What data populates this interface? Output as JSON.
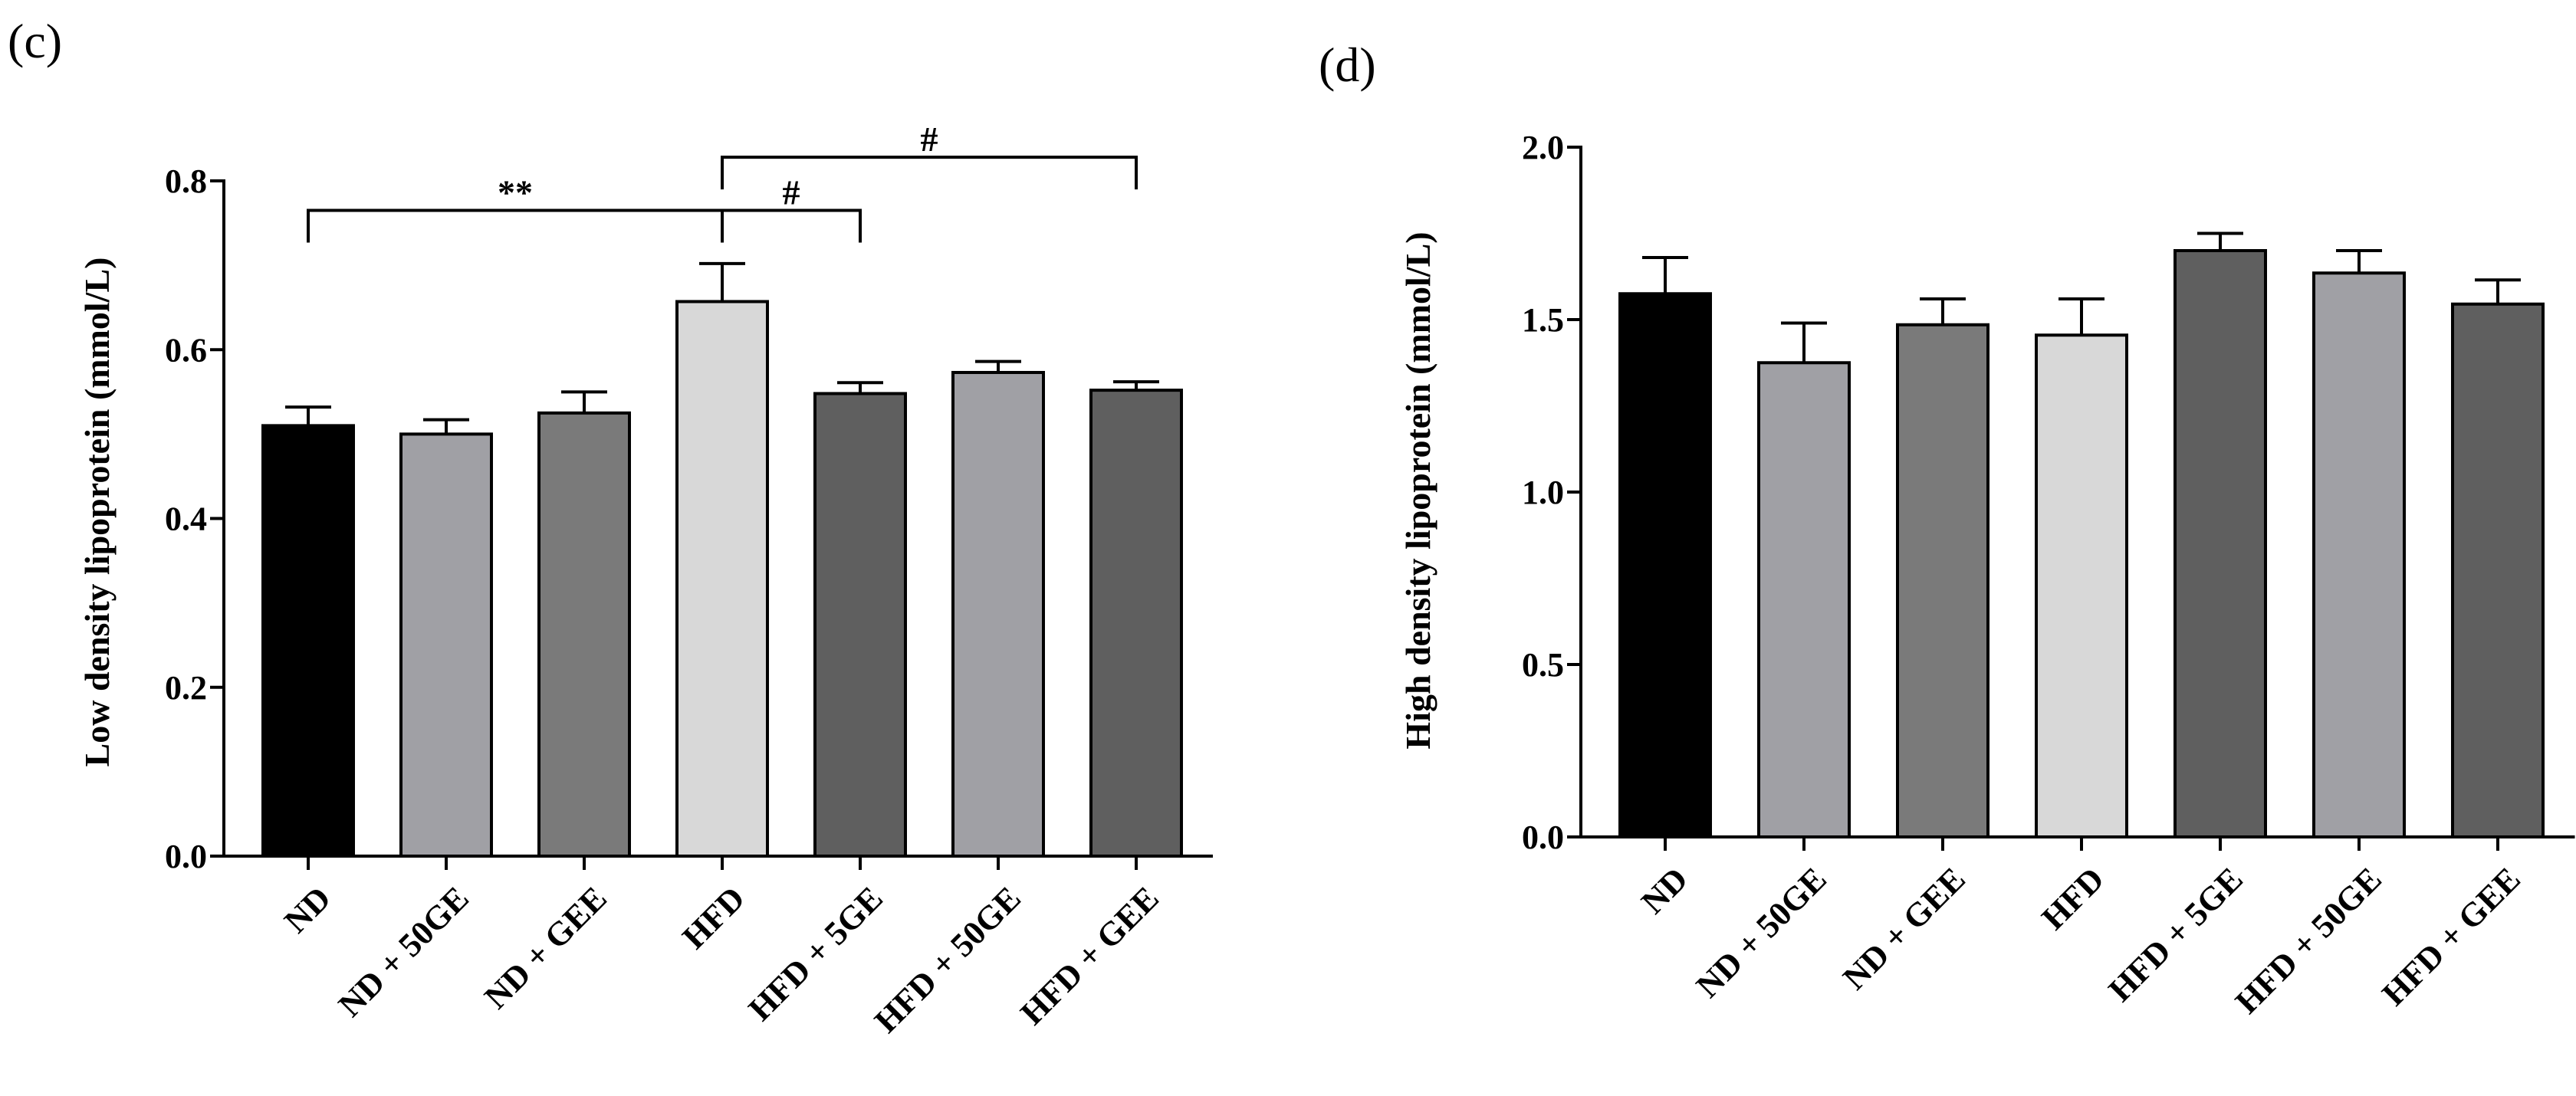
{
  "chart_data": [
    {
      "panel_label": "(c)",
      "type": "bar",
      "ylabel": "Low density lipoprotein (mmol/L)",
      "ylim": [
        0,
        0.8
      ],
      "yticks": [
        "0.0",
        "0.2",
        "0.4",
        "0.6",
        "0.8"
      ],
      "categories": [
        "ND",
        "ND + 50GE",
        "ND + GEE",
        "HFD",
        "HFD + 5GE",
        "HFD + 50GE",
        "HFD + GEE"
      ],
      "values": [
        0.51,
        0.5,
        0.525,
        0.657,
        0.548,
        0.573,
        0.552
      ],
      "errors": [
        0.022,
        0.017,
        0.025,
        0.045,
        0.013,
        0.013,
        0.01
      ],
      "colors": [
        "#000000",
        "#a0a0a5",
        "#7a7a7a",
        "#d8d8d8",
        "#5f5f5f",
        "#a0a0a5",
        "#5f5f5f"
      ],
      "annotations": [
        {
          "from": 0,
          "to": 3,
          "label": "**",
          "level": 0.765
        },
        {
          "from": 3,
          "to": 4,
          "label": "#",
          "level": 0.765
        },
        {
          "from": 3,
          "to": 6,
          "label": "#",
          "level": 0.828
        }
      ]
    },
    {
      "panel_label": "(d)",
      "type": "bar",
      "ylabel": "High density lipoprotein (mmol/L)",
      "ylim": [
        0,
        2.0
      ],
      "yticks": [
        "0.0",
        "0.5",
        "1.0",
        "1.5",
        "2.0"
      ],
      "categories": [
        "ND",
        "ND + 50GE",
        "ND + GEE",
        "HFD",
        "HFD + 5GE",
        "HFD + 50GE",
        "HFD + GEE"
      ],
      "values": [
        1.575,
        1.375,
        1.485,
        1.455,
        1.7,
        1.635,
        1.545
      ],
      "errors": [
        0.105,
        0.115,
        0.075,
        0.105,
        0.05,
        0.065,
        0.07
      ],
      "colors": [
        "#000000",
        "#a0a0a5",
        "#7a7a7a",
        "#d8d8d8",
        "#5f5f5f",
        "#a0a0a5",
        "#5f5f5f"
      ],
      "annotations": []
    }
  ]
}
